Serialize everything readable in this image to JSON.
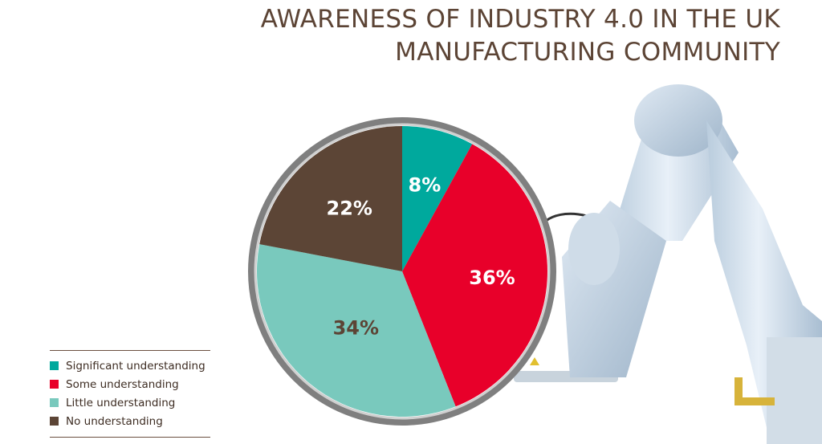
{
  "chart_data": {
    "type": "pie",
    "title": "AWARENESS OF INDUSTRY 4.0 IN THE UK MANUFACTURING COMMUNITY",
    "title_lines": [
      "AWARENESS OF INDUSTRY 4.0 IN THE UK",
      "MANUFACTURING COMMUNITY"
    ],
    "slices": [
      {
        "name": "Significant understanding",
        "value": 8,
        "label": "8%",
        "color": "#00a99d",
        "label_color": "#ffffff"
      },
      {
        "name": "Some understanding",
        "value": 36,
        "label": "36%",
        "color": "#e8002a",
        "label_color": "#ffffff"
      },
      {
        "name": "Little understanding",
        "value": 34,
        "label": "34%",
        "color": "#79c9bd",
        "label_color": "#5c4435"
      },
      {
        "name": "No understanding",
        "value": 22,
        "label": "22%",
        "color": "#5c4536",
        "label_color": "#ffffff"
      }
    ],
    "legend_placement": "bottom-left"
  },
  "legend": {
    "items": [
      {
        "label": "Significant understanding",
        "color": "#00a99d"
      },
      {
        "label": "Some understanding",
        "color": "#e8002a"
      },
      {
        "label": "Little understanding",
        "color": "#79c9bd"
      },
      {
        "label": "No understanding",
        "color": "#5c4536"
      }
    ]
  }
}
